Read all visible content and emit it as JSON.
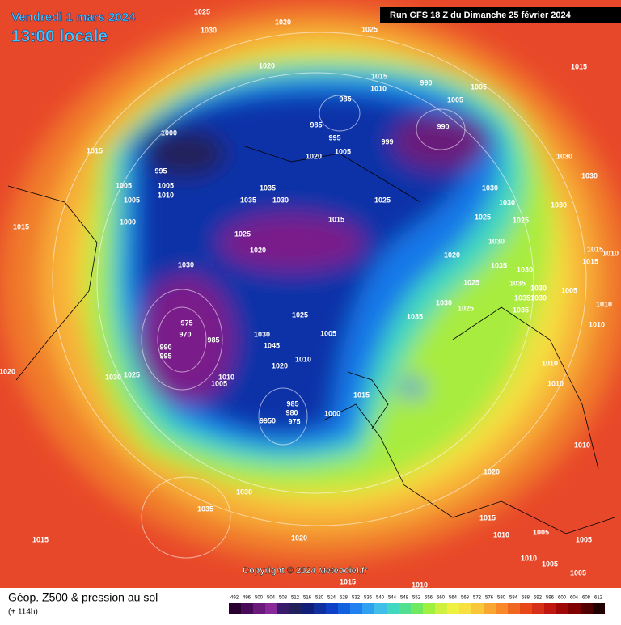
{
  "header": {
    "date": "Vendredi 1 mars 2024",
    "time": "13:00 locale",
    "run": "Run GFS 18 Z du Dimanche 25 février 2024"
  },
  "copyright": "Copyright © 2024 Meteociel.fr",
  "footer": {
    "title": "Géop. Z500 & pression au sol",
    "lead": "(+ 114h)"
  },
  "isobar_labels": [
    "1025",
    "1030",
    "1020",
    "1025",
    "1020",
    "1015",
    "1010",
    "990",
    "1005",
    "985",
    "990",
    "1005",
    "1015",
    "1000",
    "985",
    "995",
    "1005",
    "999",
    "1020",
    "1015",
    "995",
    "1005",
    "1005",
    "1010",
    "1005",
    "1035",
    "1030",
    "1035",
    "1030",
    "1030",
    "1030",
    "1025",
    "1030",
    "1030",
    "1025",
    "1025",
    "1015",
    "1000",
    "1015",
    "1025",
    "1020",
    "1030",
    "1030",
    "1020",
    "1035",
    "1030",
    "1015",
    "1015",
    "1010",
    "1025",
    "1035",
    "1030",
    "1005",
    "1035",
    "1030",
    "1035",
    "1030",
    "1025",
    "1035",
    "1010",
    "1025",
    "1010",
    "975",
    "970",
    "985",
    "990",
    "995",
    "1030",
    "1005",
    "1045",
    "1010",
    "1020",
    "1010",
    "1030",
    "1025",
    "1010",
    "1005",
    "1010",
    "1015",
    "985",
    "980",
    "1000",
    "9950",
    "975",
    "1020",
    "1010",
    "1020",
    "1030",
    "1035",
    "1015",
    "1010",
    "1005",
    "1015",
    "1020",
    "1005",
    "1010",
    "1005",
    "1005",
    "1015",
    "1010"
  ],
  "colorbar": {
    "ticks": [
      492,
      496,
      500,
      504,
      508,
      512,
      516,
      520,
      524,
      528,
      532,
      536,
      540,
      544,
      548,
      552,
      556,
      560,
      564,
      568,
      572,
      576,
      580,
      584,
      588,
      592,
      596,
      600,
      604,
      608,
      612
    ],
    "colors": [
      "#2a0030",
      "#4a0a5a",
      "#6a1a7a",
      "#8a2a9a",
      "#3a1a6a",
      "#20205a",
      "#10207a",
      "#1030a0",
      "#1040c8",
      "#1060e0",
      "#2080f0",
      "#30a0f0",
      "#40c0e8",
      "#40d8c0",
      "#50e090",
      "#70e860",
      "#a0f040",
      "#d0f040",
      "#f0f040",
      "#f8e040",
      "#f8c838",
      "#f8a830",
      "#f88828",
      "#f06820",
      "#e84818",
      "#d83018",
      "#c01810",
      "#a00808",
      "#800000",
      "#500000",
      "#200000"
    ]
  }
}
